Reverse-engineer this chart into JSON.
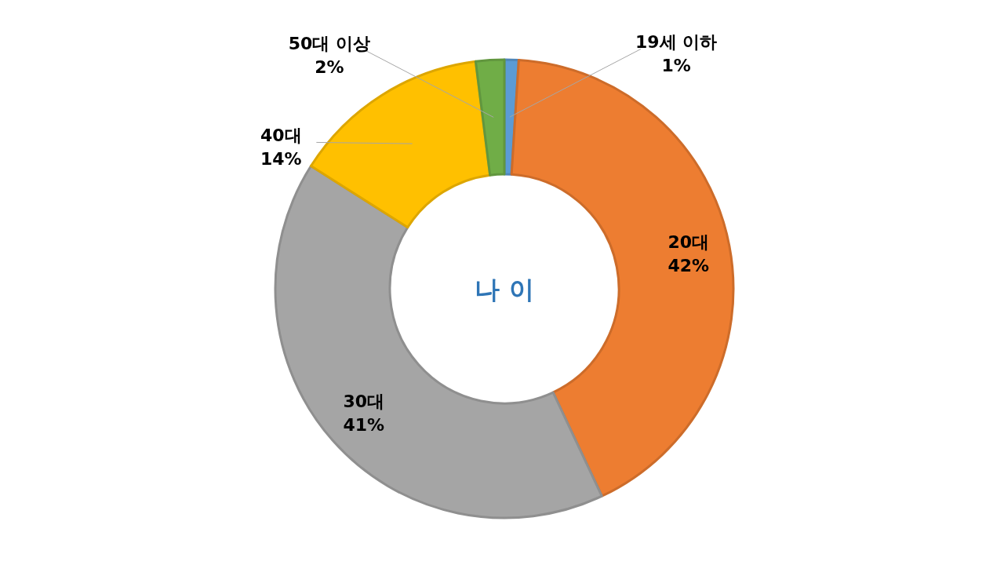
{
  "chart_data": {
    "type": "donut",
    "title": "나 이",
    "categories": [
      "19세 이하",
      "20대",
      "30대",
      "40대",
      "50대 이상"
    ],
    "values": [
      1,
      42,
      41,
      14,
      2
    ],
    "value_labels": [
      "1%",
      "42%",
      "41%",
      "14%",
      "2%"
    ],
    "colors": [
      "#5b9bd5",
      "#ed7d31",
      "#a5a5a5",
      "#ffc000",
      "#70ad47"
    ]
  }
}
